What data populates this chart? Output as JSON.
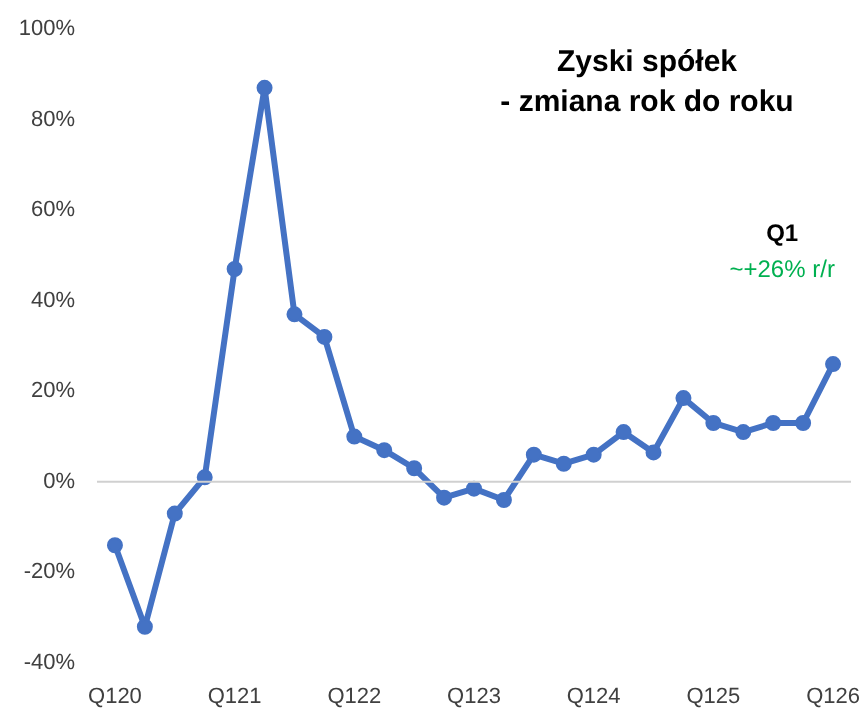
{
  "chart_data": {
    "type": "line",
    "title": "Zyski spółek\n- zmiana rok do roku",
    "categories": [
      "Q120",
      null,
      null,
      null,
      "Q121",
      null,
      null,
      null,
      "Q122",
      null,
      null,
      null,
      "Q123",
      null,
      null,
      null,
      "Q124",
      null,
      null,
      null,
      "Q125",
      null,
      null,
      null,
      "Q126"
    ],
    "series": [
      {
        "color": "#4472c4",
        "values": [
          -14,
          -32,
          -7,
          1,
          47,
          87,
          37,
          32,
          10,
          7,
          3,
          -3.5,
          -1.5,
          -4,
          6,
          4,
          6,
          11,
          6.5,
          18.5,
          13,
          11,
          13,
          13,
          26
        ]
      }
    ],
    "ylim": [
      -40,
      100
    ],
    "yticks": [
      {
        "value": -40,
        "label": "-40%"
      },
      {
        "value": -20,
        "label": "-20%"
      },
      {
        "value": 0,
        "label": "0%"
      },
      {
        "value": 20,
        "label": "20%"
      },
      {
        "value": 40,
        "label": "40%"
      },
      {
        "value": 60,
        "label": "60%"
      },
      {
        "value": 80,
        "label": "80%"
      },
      {
        "value": 100,
        "label": "100%"
      }
    ],
    "annotations": [
      "Q1",
      "~+26% r/r"
    ],
    "marker": "circle",
    "line_style": "solid",
    "ref_lines": [
      {
        "axis": "y",
        "value": 0,
        "color": "#d0d0d0"
      }
    ],
    "grid": false
  }
}
